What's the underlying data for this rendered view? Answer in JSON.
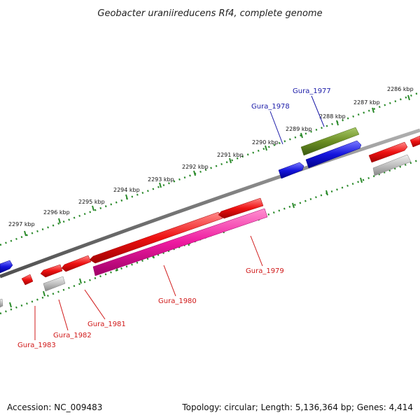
{
  "title": "Geobacter uraniireducens Rf4, complete genome",
  "footer": {
    "accession": "Accession: NC_009483",
    "summary": "Topology: circular; Length: 5,136,364 bp; Genes: 4,414"
  },
  "colors": {
    "backbone": "#808080",
    "ruler_dots": "#2a8a2a",
    "label_blue": "#1a1aa8",
    "label_red": "#d01818",
    "cds_red": "#ee1111",
    "cds_blue": "#1515dd",
    "cds_green": "#6b8e23",
    "cds_magenta": "#ee1aa0",
    "cds_gray": "#c0c0c0"
  },
  "ruler_ticks": [
    "2286 kbp",
    "2287 kbp",
    "2288 kbp",
    "2289 kbp",
    "2290 kbp",
    "2291 kbp",
    "2292 kbp",
    "2293 kbp",
    "2294 kbp",
    "2295 kbp",
    "2296 kbp",
    "2297 kbp"
  ],
  "gene_labels": {
    "gura_1977": "Gura_1977",
    "gura_1978": "Gura_1978",
    "gura_1979": "Gura_1979",
    "gura_1980": "Gura_1980",
    "gura_1981": "Gura_1981",
    "gura_1982": "Gura_1982",
    "gura_1983": "Gura_1983"
  }
}
